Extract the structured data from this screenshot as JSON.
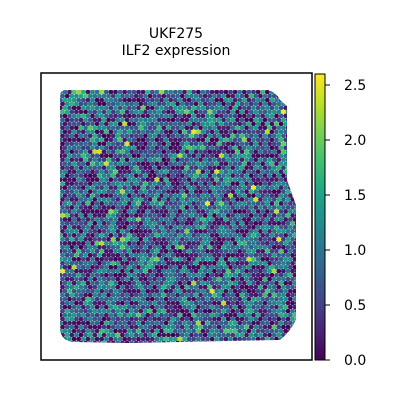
{
  "chart_data": {
    "type": "scatter",
    "subtype": "spatial-hexbin",
    "title_line1": "UKF275",
    "title_line2": "ILF2 expression",
    "xlabel": "",
    "ylabel": "",
    "grid": false,
    "colormap": "viridis",
    "colorbar": {
      "range": [
        0.0,
        2.6
      ],
      "ticks": [
        0.0,
        0.5,
        1.0,
        1.5,
        2.0,
        2.5
      ],
      "tick_labels": [
        "0.0",
        "0.5",
        "1.0",
        "1.5",
        "2.0",
        "2.5"
      ]
    },
    "colors": {
      "viridis_low": "#440154",
      "viridis_mid": "#21918c",
      "viridis_high": "#fde725"
    }
  }
}
